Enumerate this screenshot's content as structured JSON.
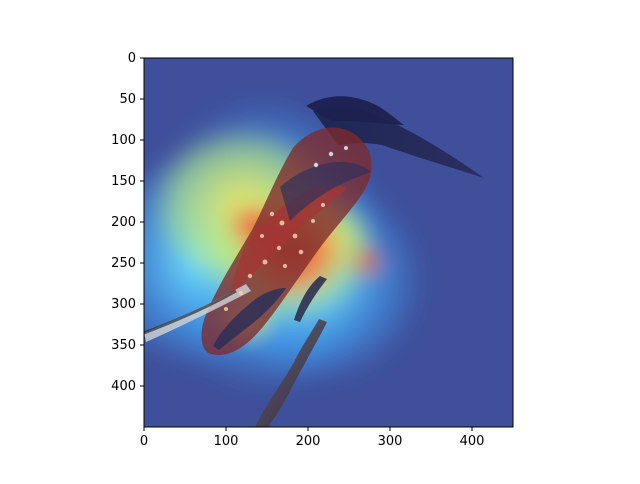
{
  "figure": {
    "image_content": "bird-photo-with-heatmap-overlay",
    "colormap": "jet",
    "frame_color": "#000000",
    "background_color": "#ffffff",
    "heatmap_colors": {
      "low": "#3f4f9a",
      "mid_low": "#3fa9ff",
      "mid": "#74e9ff",
      "mid_high": "#f7e85c",
      "high": "#d9362d"
    }
  },
  "chart_data": {
    "type": "heatmap",
    "xlim": [
      0,
      450
    ],
    "ylim": [
      450,
      0
    ],
    "x_ticks": [
      "0",
      "100",
      "200",
      "300",
      "400"
    ],
    "y_ticks": [
      "0",
      "50",
      "100",
      "150",
      "200",
      "250",
      "300",
      "350",
      "400"
    ],
    "grid": false,
    "legend": "none",
    "title": "",
    "xlabel": "",
    "ylabel": ""
  }
}
